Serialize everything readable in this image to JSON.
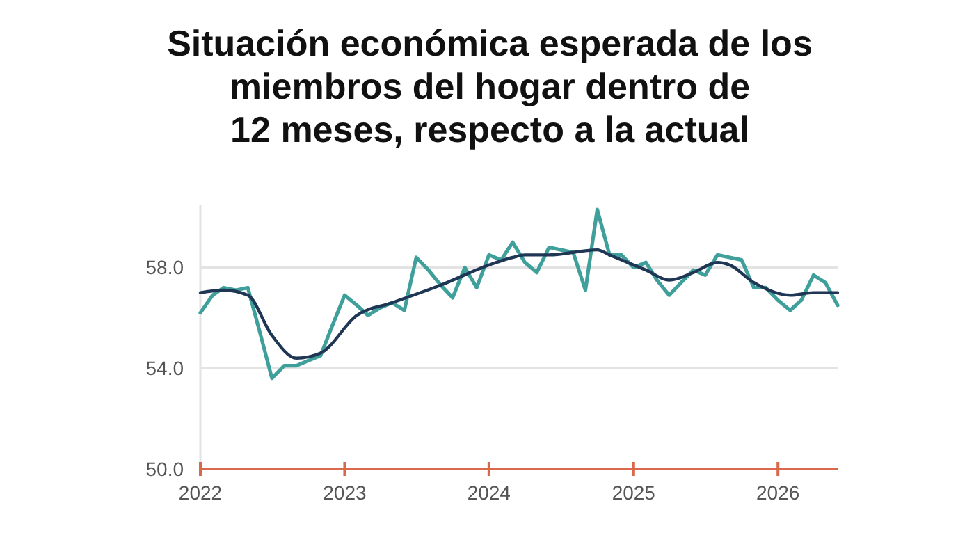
{
  "chart_data": {
    "type": "line",
    "title": "Situación económica esperada de los\nmiembros del hogar dentro de\n12 meses, respecto a la actual",
    "xlim": [
      "2022-01",
      "2026-06"
    ],
    "xticks": [
      {
        "value": "2022-01",
        "label": "2022"
      },
      {
        "value": "2023-01",
        "label": "2023"
      },
      {
        "value": "2024-01",
        "label": "2024"
      },
      {
        "value": "2025-01",
        "label": "2025"
      },
      {
        "value": "2026-01",
        "label": "2026"
      }
    ],
    "yticks": [
      {
        "value": 50,
        "label": "50.0"
      },
      {
        "value": 54,
        "label": "54.0"
      },
      {
        "value": 58,
        "label": "58.0"
      }
    ],
    "ylim": [
      50,
      60.5
    ],
    "grid": "y",
    "line_style": "solid",
    "marker": "none",
    "series": [
      {
        "color": "#3f9f9b",
        "x": [
          "2022-01",
          "2022-02",
          "2022-03",
          "2022-04",
          "2022-05",
          "2022-06",
          "2022-07",
          "2022-08",
          "2022-09",
          "2022-10",
          "2022-11",
          "2022-12",
          "2023-01",
          "2023-02",
          "2023-03",
          "2023-04",
          "2023-05",
          "2023-06",
          "2023-07",
          "2023-08",
          "2023-09",
          "2023-10",
          "2023-11",
          "2023-12",
          "2024-01",
          "2024-02",
          "2024-03",
          "2024-04",
          "2024-05",
          "2024-06",
          "2024-07",
          "2024-08",
          "2024-09",
          "2024-10",
          "2024-11",
          "2024-12",
          "2025-01",
          "2025-02",
          "2025-03",
          "2025-04",
          "2025-05",
          "2025-06",
          "2025-07",
          "2025-08",
          "2025-09",
          "2025-10",
          "2025-11",
          "2025-12",
          "2026-01",
          "2026-02",
          "2026-03",
          "2026-04",
          "2026-05",
          "2026-06"
        ],
        "values": [
          56.2,
          56.9,
          57.2,
          57.1,
          57.2,
          55.4,
          53.6,
          54.1,
          54.1,
          54.3,
          54.5,
          55.7,
          56.9,
          56.5,
          56.1,
          56.4,
          56.6,
          56.3,
          58.4,
          57.9,
          57.3,
          56.8,
          58.0,
          57.2,
          58.5,
          58.3,
          59.0,
          58.2,
          57.8,
          58.8,
          58.7,
          58.6,
          57.1,
          60.3,
          58.5,
          58.5,
          58.0,
          58.2,
          57.5,
          56.9,
          57.4,
          57.9,
          57.7,
          58.5,
          58.4,
          58.3,
          57.2,
          57.2,
          56.7,
          56.3,
          56.7,
          57.7,
          57.4,
          56.5
        ]
      },
      {
        "color": "#1f3655",
        "x": [
          "2022-01",
          "2022-03",
          "2022-05",
          "2022-07",
          "2022-09",
          "2022-11",
          "2023-02",
          "2023-05",
          "2023-09",
          "2024-01",
          "2024-03",
          "2024-04",
          "2024-06",
          "2024-10",
          "2024-11",
          "2025-02",
          "2025-04",
          "2025-06",
          "2025-08",
          "2025-09",
          "2025-11",
          "2026-02",
          "2026-04",
          "2026-06"
        ],
        "values": [
          57.0,
          57.1,
          56.9,
          55.3,
          54.4,
          54.6,
          56.1,
          56.6,
          57.3,
          58.1,
          58.4,
          58.5,
          58.5,
          58.7,
          58.5,
          57.9,
          57.5,
          57.8,
          58.2,
          58.1,
          57.4,
          56.9,
          57.0,
          57.0
        ]
      }
    ]
  }
}
